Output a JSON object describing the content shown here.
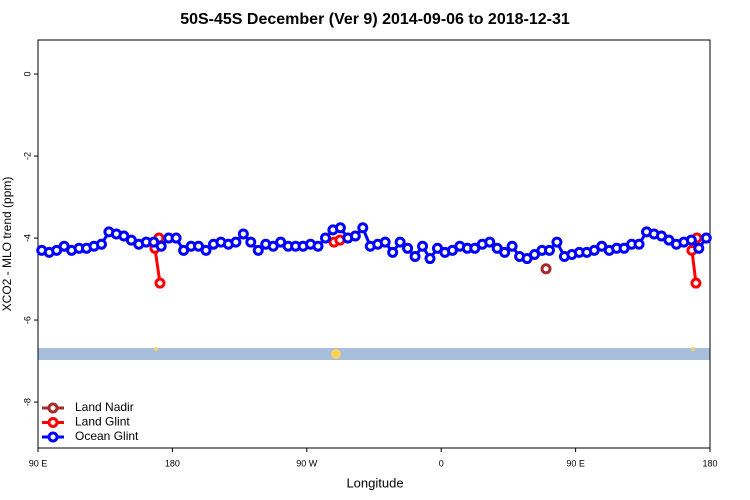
{
  "chart_data": {
    "type": "line",
    "title": "50S-45S December (Ver 9)   2014-09-06 to 2018-12-31",
    "x_label": "Longitude",
    "y_label": "XCO2 - MLO trend (ppm)",
    "xlim": [
      90,
      540
    ],
    "xticks": [
      {
        "value": 90,
        "label": "90 E"
      },
      {
        "value": 180,
        "label": "180"
      },
      {
        "value": 270,
        "label": "90 W"
      },
      {
        "value": 360,
        "label": "0"
      },
      {
        "value": 450,
        "label": "90 E"
      },
      {
        "value": 540,
        "label": "180"
      }
    ],
    "ylim": [
      -9.12,
      0.83
    ],
    "yticks": [
      0,
      -2,
      -4,
      -6,
      -8
    ],
    "legend": "bottom-left",
    "series": [
      {
        "name": "Land Nadir",
        "color": "#a52a2a",
        "x": [
          430.2
        ],
        "values": [
          -4.75
        ]
      },
      {
        "name": "Land Glint",
        "color": "#ff0000",
        "x": [
          168.3,
          171.7,
          null,
          171,
          null,
          288.2,
          292.2,
          null,
          527.9,
          530.6,
          null,
          531.2
        ],
        "values": [
          -4.25,
          -5.1,
          null,
          -4.0,
          null,
          -4.1,
          -4.05,
          null,
          -4.3,
          -5.1,
          null,
          -4.0
        ]
      },
      {
        "name": "Ocean Glint",
        "color": "#0000ff",
        "x": [
          92.5,
          97.5,
          102.5,
          107.5,
          112.5,
          117.5,
          122.5,
          127.5,
          132.5,
          137.5,
          142.5,
          147.5,
          152.5,
          157.5,
          162.5,
          167.5,
          172.5,
          177.5,
          182.5,
          187.5,
          192.5,
          197.5,
          202.5,
          207.5,
          212.5,
          217.5,
          222.5,
          227.5,
          232.5,
          237.5,
          242.5,
          247.5,
          252.5,
          257.5,
          262.5,
          267.5,
          272.5,
          277.5,
          282.5,
          287.5,
          292.5,
          297.5,
          302.5,
          307.5,
          312.5,
          317.5,
          322.5,
          327.5,
          332.5,
          337.5,
          342.5,
          347.5,
          352.5,
          357.5,
          362.5,
          367.5,
          372.5,
          377.5,
          382.5,
          387.5,
          392.5,
          397.5,
          402.5,
          407.5,
          412.5,
          417.5,
          422.5,
          427.5,
          432.5,
          437.5,
          442.5,
          447.5,
          452.5,
          457.5,
          462.5,
          467.5,
          472.5,
          477.5,
          482.5,
          487.5,
          492.5,
          497.5,
          502.5,
          507.5,
          512.5,
          517.5,
          522.5,
          527.5,
          532.5,
          537.5
        ],
        "values": [
          -4.3,
          -4.35,
          -4.3,
          -4.2,
          -4.3,
          -4.25,
          -4.25,
          -4.2,
          -4.15,
          -3.85,
          -3.9,
          -3.95,
          -4.05,
          -4.15,
          -4.1,
          -4.1,
          -4.2,
          -4.0,
          -4.0,
          -4.3,
          -4.2,
          -4.2,
          -4.3,
          -4.15,
          -4.1,
          -4.15,
          -4.1,
          -3.9,
          -4.1,
          -4.3,
          -4.15,
          -4.2,
          -4.1,
          -4.2,
          -4.2,
          -4.2,
          -4.15,
          -4.2,
          -4.0,
          -3.8,
          -3.75,
          -4.0,
          -3.95,
          -3.75,
          -4.2,
          -4.15,
          -4.1,
          -4.35,
          -4.1,
          -4.25,
          -4.45,
          -4.2,
          -4.5,
          -4.25,
          -4.35,
          -4.3,
          -4.2,
          -4.25,
          -4.25,
          -4.15,
          -4.1,
          -4.25,
          -4.35,
          -4.2,
          -4.45,
          -4.5,
          -4.4,
          -4.3,
          -4.3,
          -4.1,
          -4.45,
          -4.4,
          -4.35,
          -4.35,
          -4.3,
          -4.2,
          -4.3,
          -4.25,
          -4.25,
          -4.15,
          -4.15,
          -3.85,
          -3.9,
          -3.95,
          -4.05,
          -4.15,
          -4.1,
          -4.05,
          -4.25,
          -4.0
        ]
      }
    ]
  }
}
